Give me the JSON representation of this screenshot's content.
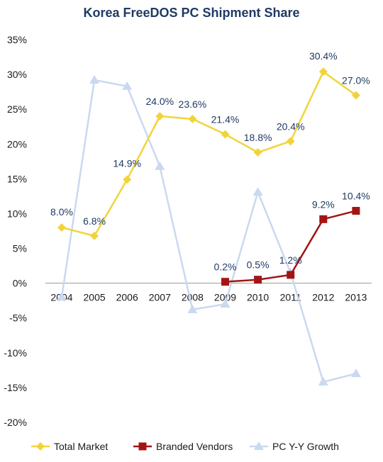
{
  "chart_data": {
    "type": "line",
    "title": "Korea FreeDOS PC Shipment Share",
    "categories": [
      "2004",
      "2005",
      "2006",
      "2007",
      "2008",
      "2009",
      "2010",
      "2011",
      "2012",
      "2013"
    ],
    "ylim": [
      -20,
      35
    ],
    "yticks": [
      35,
      30,
      25,
      20,
      15,
      10,
      5,
      0,
      -5,
      -10,
      -15,
      -20
    ],
    "ytick_labels": [
      "35%",
      "30%",
      "25%",
      "20%",
      "15%",
      "10%",
      "5%",
      "0%",
      "-5%",
      "-10%",
      "-15%",
      "-20%"
    ],
    "grid": false,
    "legend_position": "bottom",
    "series": [
      {
        "name": "Total Market",
        "color": "#f2d43a",
        "marker": "diamond",
        "values": [
          8.0,
          6.8,
          14.9,
          24.0,
          23.6,
          21.4,
          18.8,
          20.4,
          30.4,
          27.0
        ],
        "labels": [
          "8.0%",
          "6.8%",
          "14.9%",
          "24.0%",
          "23.6%",
          "21.4%",
          "18.8%",
          "20.4%",
          "30.4%",
          "27.0%"
        ]
      },
      {
        "name": "Branded Vendors",
        "color": "#a31515",
        "marker": "square",
        "values": [
          null,
          null,
          null,
          null,
          null,
          0.2,
          0.5,
          1.2,
          9.2,
          10.4
        ],
        "labels": [
          null,
          null,
          null,
          null,
          null,
          "0.2%",
          "0.5%",
          "1.2%",
          "9.2%",
          "10.4%"
        ]
      },
      {
        "name": "PC Y-Y Growth",
        "color": "#c9d9f0",
        "marker": "triangle",
        "values": [
          -2.0,
          29.2,
          28.3,
          16.8,
          -3.8,
          -3.0,
          13.1,
          1.5,
          -14.2,
          -13.0
        ],
        "labels": [
          null,
          null,
          null,
          null,
          null,
          null,
          null,
          null,
          null,
          null
        ]
      }
    ]
  }
}
